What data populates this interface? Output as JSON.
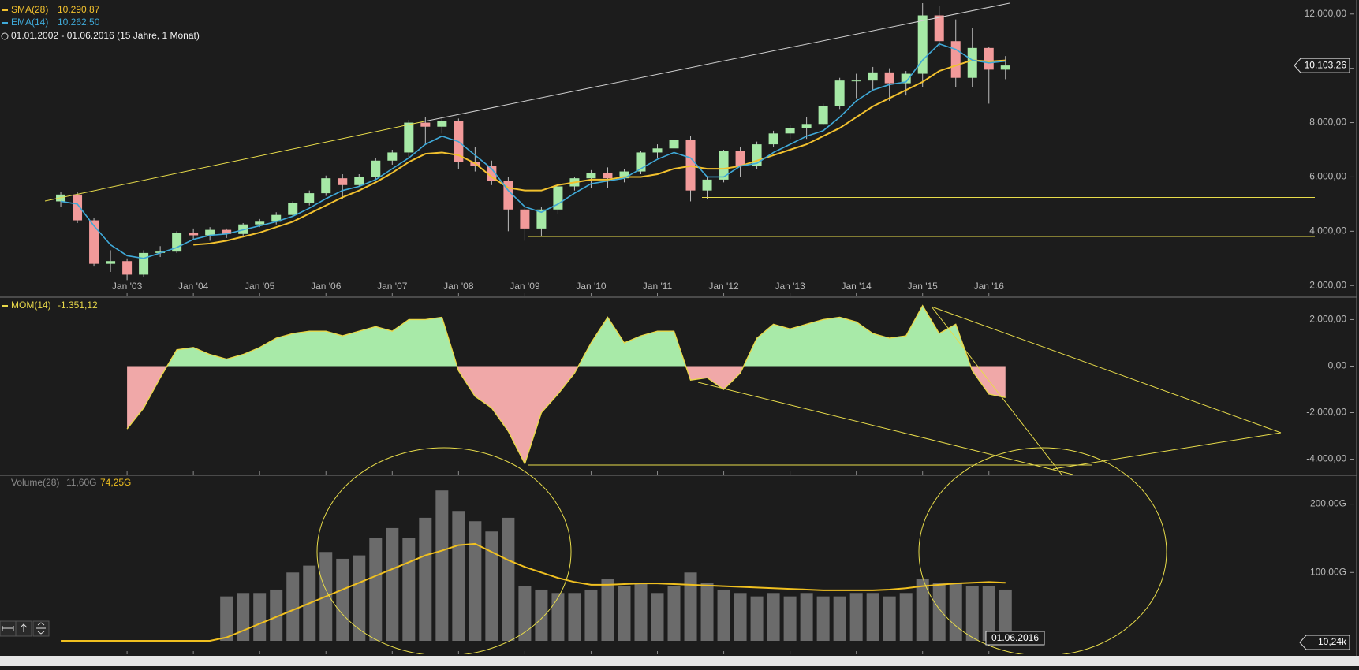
{
  "chart_data": [
    {
      "type": "candlestick",
      "date_range": "01.01.2002 - 01.06.2016 (15 Jahre, 1 Monat)",
      "up_color": "#a6e9a6",
      "down_color": "#f29a9a",
      "x": [
        "2002-01",
        "2002-04",
        "2002-07",
        "2002-10",
        "2003-01",
        "2003-04",
        "2003-07",
        "2003-10",
        "2004-01",
        "2004-04",
        "2004-07",
        "2004-10",
        "2005-01",
        "2005-04",
        "2005-07",
        "2005-10",
        "2006-01",
        "2006-04",
        "2006-07",
        "2006-10",
        "2007-01",
        "2007-04",
        "2007-07",
        "2007-10",
        "2008-01",
        "2008-04",
        "2008-07",
        "2008-10",
        "2009-01",
        "2009-04",
        "2009-07",
        "2009-10",
        "2010-01",
        "2010-04",
        "2010-07",
        "2010-10",
        "2011-01",
        "2011-04",
        "2011-07",
        "2011-10",
        "2012-01",
        "2012-04",
        "2012-07",
        "2012-10",
        "2013-01",
        "2013-04",
        "2013-07",
        "2013-10",
        "2014-01",
        "2014-04",
        "2014-07",
        "2014-10",
        "2015-01",
        "2015-04",
        "2015-07",
        "2015-10",
        "2016-01",
        "2016-04"
      ],
      "xlim": [
        "2001-02",
        "2020-11"
      ],
      "xticks": [
        {
          "value": "2003-01",
          "label": "Jan '03"
        },
        {
          "value": "2004-01",
          "label": "Jan '04"
        },
        {
          "value": "2005-01",
          "label": "Jan '05"
        },
        {
          "value": "2006-01",
          "label": "Jan '06"
        },
        {
          "value": "2007-01",
          "label": "Jan '07"
        },
        {
          "value": "2008-01",
          "label": "Jan '08"
        },
        {
          "value": "2009-01",
          "label": "Jan '09"
        },
        {
          "value": "2010-01",
          "label": "Jan '10"
        },
        {
          "value": "2011-01",
          "label": "Jan '11"
        },
        {
          "value": "2012-01",
          "label": "Jan '12"
        },
        {
          "value": "2013-01",
          "label": "Jan '13"
        },
        {
          "value": "2014-01",
          "label": "Jan '14"
        },
        {
          "value": "2015-01",
          "label": "Jan '15"
        },
        {
          "value": "2016-01",
          "label": "Jan '16"
        }
      ],
      "open": [
        5100,
        5350,
        4400,
        2800,
        2900,
        2400,
        3200,
        3250,
        3950,
        3850,
        4050,
        3900,
        4250,
        4350,
        4600,
        5050,
        5400,
        5950,
        5700,
        6000,
        6600,
        6900,
        8000,
        7850,
        8050,
        6550,
        6400,
        5850,
        4800,
        4100,
        4800,
        5650,
        5950,
        6150,
        5950,
        6200,
        6900,
        7050,
        7350,
        5500,
        5900,
        6950,
        6400,
        7200,
        7600,
        7800,
        7950,
        8600,
        9550,
        9550,
        9850,
        9450,
        9800,
        11950,
        11000,
        9650,
        10750,
        9950
      ],
      "high": [
        5450,
        5450,
        4500,
        3300,
        3000,
        3300,
        3450,
        4000,
        4100,
        4150,
        4100,
        4300,
        4450,
        4700,
        5100,
        5500,
        6050,
        6100,
        6100,
        6700,
        7000,
        8100,
        8200,
        8150,
        8150,
        7100,
        6600,
        6000,
        4900,
        4900,
        5700,
        6000,
        6250,
        6350,
        6300,
        6950,
        7200,
        7600,
        7500,
        6000,
        7000,
        7100,
        7300,
        7700,
        7900,
        8200,
        8700,
        9650,
        9800,
        10050,
        10000,
        9900,
        12400,
        12300,
        11800,
        11500,
        10800,
        10450
      ],
      "low": [
        4900,
        4300,
        2700,
        2500,
        2200,
        2300,
        3050,
        3200,
        3700,
        3650,
        3750,
        3800,
        4150,
        4250,
        4550,
        4950,
        5300,
        5200,
        5650,
        5900,
        6450,
        6700,
        7200,
        7600,
        6300,
        6200,
        5700,
        4000,
        3650,
        3800,
        4650,
        5500,
        5600,
        5600,
        5800,
        6100,
        6700,
        6900,
        5100,
        5200,
        5800,
        6000,
        6300,
        7100,
        7400,
        7400,
        7900,
        8500,
        8900,
        9200,
        8800,
        9000,
        9300,
        10800,
        9300,
        9300,
        8700,
        9600
      ],
      "close": [
        5350,
        4400,
        2800,
        2900,
        2400,
        3200,
        3250,
        3950,
        3850,
        4050,
        3900,
        4250,
        4350,
        4600,
        5050,
        5400,
        5950,
        5700,
        6000,
        6600,
        6900,
        8000,
        7850,
        8050,
        6550,
        6400,
        5850,
        4800,
        4100,
        4800,
        5650,
        5950,
        6150,
        5950,
        6200,
        6900,
        7050,
        7350,
        5500,
        5900,
        6950,
        6400,
        7200,
        7600,
        7800,
        7950,
        8600,
        9550,
        9550,
        9850,
        9450,
        9800,
        11950,
        11000,
        9650,
        10750,
        9950,
        10103.26
      ],
      "series": [
        {
          "name": "SMA(28)",
          "value_label": "10.290,87",
          "color": "#f2c12e",
          "values": [
            null,
            null,
            null,
            null,
            null,
            null,
            null,
            null,
            3500,
            3550,
            3650,
            3800,
            3950,
            4150,
            4350,
            4650,
            4950,
            5250,
            5500,
            5800,
            6150,
            6550,
            6850,
            6900,
            6800,
            6500,
            6000,
            5600,
            5500,
            5500,
            5700,
            5800,
            5900,
            5900,
            6000,
            6000,
            6100,
            6300,
            6400,
            6300,
            6300,
            6400,
            6600,
            6800,
            7000,
            7200,
            7500,
            7800,
            8200,
            8600,
            8900,
            9200,
            9500,
            9900,
            10100,
            10300,
            10250,
            10291
          ]
        },
        {
          "name": "EMA(14)",
          "value_label": "10.262,50",
          "color": "#3fa9d8",
          "values": [
            5100,
            5000,
            4200,
            3500,
            3100,
            3000,
            3200,
            3400,
            3700,
            3850,
            3900,
            4050,
            4200,
            4350,
            4550,
            4850,
            5200,
            5500,
            5650,
            5900,
            6300,
            6700,
            7200,
            7500,
            7300,
            6800,
            6300,
            5500,
            4900,
            4700,
            5000,
            5400,
            5750,
            5850,
            5950,
            6300,
            6650,
            6900,
            6700,
            6000,
            6000,
            6400,
            6500,
            6900,
            7200,
            7500,
            7700,
            8200,
            8800,
            9200,
            9400,
            9500,
            10300,
            10900,
            10700,
            10300,
            10200,
            10263
          ]
        }
      ],
      "last_price": {
        "value": 10103.26,
        "label": "10.103,26"
      },
      "ylim": [
        1600,
        12400
      ],
      "yticks": [
        {
          "value": 2000,
          "label": "2.000,00"
        },
        {
          "value": 4000,
          "label": "4.000,00"
        },
        {
          "value": 6000,
          "label": "6.000,00"
        },
        {
          "value": 8000,
          "label": "8.000,00"
        },
        {
          "value": 10000,
          "label": "10.000,00"
        },
        {
          "value": 12000,
          "label": "12.000,00"
        }
      ]
    },
    {
      "type": "area",
      "pos_color": "#a8eaa8",
      "neg_color": "#f0a8a8",
      "series": [
        {
          "name": "MOM(14)",
          "value_label": "-1.351,12",
          "color": "#e8d84a",
          "values": [
            null,
            null,
            null,
            null,
            -2700,
            -1800,
            -500,
            700,
            800,
            500,
            300,
            500,
            800,
            1200,
            1400,
            1500,
            1500,
            1300,
            1500,
            1700,
            1500,
            2000,
            2000,
            2100,
            -200,
            -1300,
            -1800,
            -2800,
            -4200,
            -2000,
            -1200,
            -300,
            1000,
            2100,
            1000,
            1300,
            1500,
            1500,
            -600,
            -500,
            -1000,
            -300,
            1200,
            1800,
            1600,
            1800,
            2000,
            2100,
            1900,
            1400,
            1200,
            1300,
            2600,
            1400,
            1800,
            -200,
            -1200,
            -1351.12
          ]
        }
      ],
      "ylim": [
        -4660,
        2930
      ],
      "yticks": [
        {
          "value": -4000,
          "label": "-4.000,00"
        },
        {
          "value": -2000,
          "label": "-2.000,00"
        },
        {
          "value": 0,
          "label": "0,00"
        },
        {
          "value": 2000,
          "label": "2.000,00"
        }
      ]
    },
    {
      "type": "bar",
      "cursor_date": "01.06.2016",
      "axis_marker": "10,24k",
      "series": [
        {
          "name": "Volume(28)",
          "value_label": "11,60G",
          "color": "#6b6b6b",
          "values": [
            null,
            null,
            null,
            null,
            null,
            null,
            null,
            null,
            null,
            null,
            65,
            70,
            70,
            75,
            100,
            110,
            130,
            120,
            125,
            150,
            165,
            150,
            180,
            220,
            190,
            175,
            160,
            180,
            80,
            75,
            70,
            70,
            75,
            90,
            80,
            85,
            70,
            80,
            100,
            85,
            75,
            70,
            65,
            70,
            65,
            70,
            65,
            65,
            70,
            70,
            65,
            70,
            90,
            85,
            85,
            80,
            80,
            75
          ]
        },
        {
          "value_label": "74,25G",
          "color": "#f0c020",
          "values": [
            0,
            0,
            0,
            0,
            0,
            0,
            0,
            0,
            0,
            0,
            5,
            15,
            25,
            35,
            45,
            55,
            65,
            75,
            85,
            95,
            105,
            115,
            125,
            132,
            140,
            142,
            130,
            118,
            108,
            100,
            92,
            86,
            82,
            82,
            83,
            84,
            84,
            83,
            82,
            81,
            80,
            79,
            78,
            77,
            76,
            75,
            74,
            74,
            74,
            74,
            75,
            77,
            80,
            82,
            84,
            85,
            86,
            85
          ]
        }
      ],
      "ylim": [
        -19.6,
        241
      ],
      "yticks": [
        {
          "value": 100,
          "label": "100,00G"
        },
        {
          "value": 200,
          "label": "200,00G"
        }
      ]
    }
  ]
}
